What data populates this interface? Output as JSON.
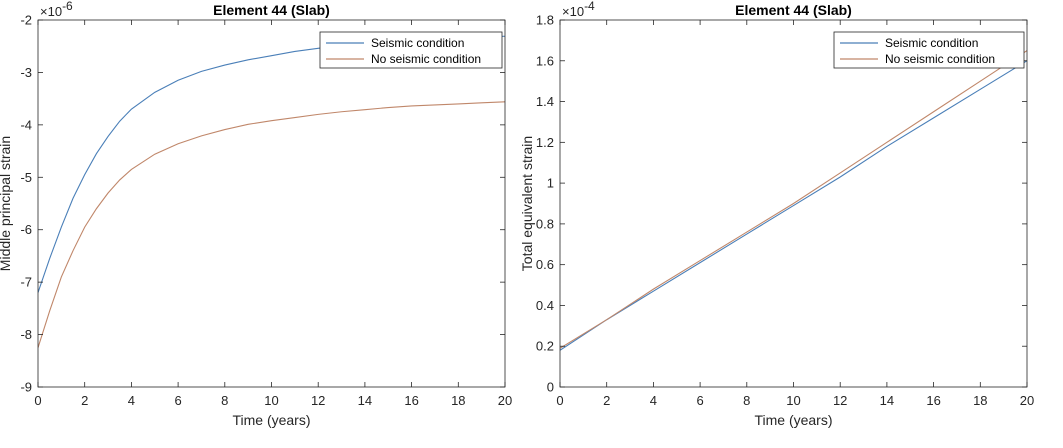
{
  "chart_data": [
    {
      "type": "line",
      "title": "Element 44 (Slab)",
      "xlabel": "Time (years)",
      "ylabel": "Middle principal strain",
      "xlim": [
        0,
        20
      ],
      "ylim": [
        -9,
        -2
      ],
      "xticks": [
        0,
        2,
        4,
        6,
        8,
        10,
        12,
        14,
        16,
        18,
        20
      ],
      "yticks": [
        -9,
        -8,
        -7,
        -6,
        -5,
        -4,
        -3,
        -2
      ],
      "exponent_base": "×10",
      "exponent_power": "-6",
      "legend_position": "top-right",
      "grid": false,
      "series": [
        {
          "name": "Seismic condition",
          "color": "#4a7fb8",
          "x": [
            0,
            0.5,
            1,
            1.5,
            2,
            2.5,
            3,
            3.5,
            4,
            5,
            6,
            7,
            8,
            9,
            10,
            11,
            12,
            13,
            14,
            15,
            16,
            17,
            18,
            19,
            20
          ],
          "y": [
            -7.2,
            -6.55,
            -5.95,
            -5.4,
            -4.95,
            -4.55,
            -4.22,
            -3.93,
            -3.7,
            -3.38,
            -3.15,
            -2.98,
            -2.86,
            -2.76,
            -2.68,
            -2.6,
            -2.54,
            -2.48,
            -2.44,
            -2.4,
            -2.37,
            -2.35,
            -2.33,
            -2.32,
            -2.31
          ]
        },
        {
          "name": "No seismic condition",
          "color": "#c0876a",
          "x": [
            0,
            0.5,
            1,
            1.5,
            2,
            2.5,
            3,
            3.5,
            4,
            5,
            6,
            7,
            8,
            9,
            10,
            11,
            12,
            13,
            14,
            15,
            16,
            17,
            18,
            19,
            20
          ],
          "y": [
            -8.25,
            -7.55,
            -6.9,
            -6.4,
            -5.95,
            -5.6,
            -5.3,
            -5.05,
            -4.85,
            -4.56,
            -4.36,
            -4.21,
            -4.09,
            -3.99,
            -3.92,
            -3.86,
            -3.8,
            -3.75,
            -3.71,
            -3.67,
            -3.64,
            -3.62,
            -3.6,
            -3.58,
            -3.56
          ]
        }
      ]
    },
    {
      "type": "line",
      "title": "Element 44 (Slab)",
      "xlabel": "Time (years)",
      "ylabel": "Total equivalent strain",
      "xlim": [
        0,
        20
      ],
      "ylim": [
        0,
        1.8
      ],
      "xticks": [
        0,
        2,
        4,
        6,
        8,
        10,
        12,
        14,
        16,
        18,
        20
      ],
      "yticks": [
        0,
        0.2,
        0.4,
        0.6,
        0.8,
        1,
        1.2,
        1.4,
        1.6,
        1.8
      ],
      "exponent_base": "×10",
      "exponent_power": "-4",
      "legend_position": "top-right",
      "grid": false,
      "series": [
        {
          "name": "Seismic condition",
          "color": "#4a7fb8",
          "x": [
            0,
            2,
            4,
            6,
            8,
            10,
            12,
            14,
            16,
            18,
            20
          ],
          "y": [
            0.18,
            0.33,
            0.47,
            0.61,
            0.75,
            0.89,
            1.03,
            1.18,
            1.32,
            1.46,
            1.6
          ]
        },
        {
          "name": "No seismic condition",
          "color": "#c0876a",
          "x": [
            0,
            2,
            4,
            6,
            8,
            10,
            12,
            14,
            16,
            18,
            20
          ],
          "y": [
            0.19,
            0.33,
            0.48,
            0.62,
            0.76,
            0.9,
            1.05,
            1.2,
            1.35,
            1.5,
            1.65
          ]
        }
      ]
    }
  ]
}
